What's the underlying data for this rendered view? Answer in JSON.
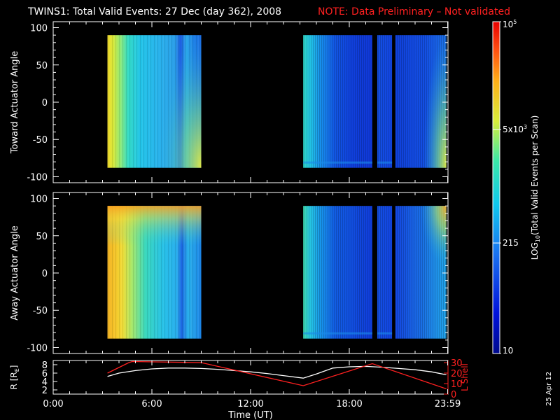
{
  "header": {
    "title": "TWINS1: Total Valid Events: 27 Dec (day 362), 2008",
    "note": "NOTE: Data Preliminary – Not validated"
  },
  "footer": {
    "date_stamp": "25 Apr 12"
  },
  "colors": {
    "background": "#000000",
    "axes": "#ffffff",
    "note": "#ff2020",
    "r_line": "#ffffff",
    "lshell_line": "#ff2020"
  },
  "chart_data": [
    {
      "type": "heatmap",
      "name": "toward",
      "ylabel": "Toward Actuator Angle",
      "xlim": [
        0,
        24
      ],
      "ylim": [
        -108,
        108
      ],
      "yticks": [
        "100",
        "50",
        "0",
        "-50",
        "-100"
      ],
      "ytick_values": [
        100,
        50,
        0,
        -50,
        -100
      ],
      "data_extent": {
        "x": [
          3.3,
          24
        ],
        "y": [
          -88,
          90
        ]
      },
      "data_intervals_hours": [
        [
          3.3,
          9.0
        ],
        [
          15.2,
          19.4
        ],
        [
          19.7,
          20.6
        ],
        [
          20.8,
          23.9
        ]
      ],
      "color_scale": "log"
    },
    {
      "type": "heatmap",
      "name": "away",
      "ylabel": "Away Actuator Angle",
      "xlim": [
        0,
        24
      ],
      "ylim": [
        -108,
        108
      ],
      "yticks": [
        "100",
        "50",
        "0",
        "-50",
        "-100"
      ],
      "ytick_values": [
        100,
        50,
        0,
        -50,
        -100
      ],
      "data_intervals_hours": [
        [
          3.3,
          9.0
        ],
        [
          15.2,
          19.4
        ],
        [
          19.7,
          20.6
        ],
        [
          20.8,
          23.9
        ]
      ],
      "color_scale": "log"
    },
    {
      "type": "line",
      "name": "orbit",
      "xlabel": "Time (UT)",
      "xticks": [
        "0:00",
        "6:00",
        "12:00",
        "18:00",
        "23:59"
      ],
      "xtick_values": [
        0,
        6,
        12,
        18,
        23.98
      ],
      "left_axis": {
        "label": "R [R",
        "label_sub": "E",
        "label_end": "]",
        "ylim": [
          1,
          9
        ],
        "ticks": [
          "8",
          "6",
          "4",
          "2"
        ],
        "tick_values": [
          8,
          6,
          4,
          2
        ]
      },
      "right_axis": {
        "label": "L Shell",
        "ylim": [
          0,
          32
        ],
        "ticks": [
          "30",
          "20",
          "10",
          "0"
        ],
        "tick_values": [
          30,
          20,
          10,
          0
        ]
      },
      "series": [
        {
          "axis": "left",
          "x": [
            3.3,
            4.0,
            5.0,
            6.0,
            7.0,
            8.0,
            9.0,
            10.0,
            11.0,
            12.0,
            13.0,
            14.0,
            15.2,
            16.0,
            17.0,
            18.0,
            19.0,
            20.0,
            21.0,
            22.0,
            23.0,
            23.9
          ],
          "y": [
            5.2,
            6.0,
            6.6,
            7.0,
            7.2,
            7.2,
            7.1,
            6.9,
            6.6,
            6.3,
            5.9,
            5.4,
            4.8,
            5.8,
            7.2,
            7.5,
            7.6,
            7.4,
            7.1,
            6.8,
            6.3,
            5.6
          ]
        },
        {
          "axis": "right",
          "x": [
            3.3,
            4.6,
            4.8,
            9.0,
            15.2,
            19.4,
            23.9
          ],
          "y": [
            20,
            30,
            31,
            30,
            8,
            29,
            5
          ]
        }
      ]
    },
    {
      "type": "colorbar",
      "label": "LOG",
      "label_sub": "10",
      "label_end": "(Total Valid Events per Scan)",
      "range": [
        10,
        100000
      ],
      "ticks": [
        {
          "value": 10,
          "base": "10",
          "exp": ""
        },
        {
          "value": 215,
          "base": "215",
          "exp": ""
        },
        {
          "value": 5000,
          "base": "5x10",
          "exp": "3"
        },
        {
          "value": 100000,
          "base": "10",
          "exp": "5"
        }
      ]
    }
  ]
}
